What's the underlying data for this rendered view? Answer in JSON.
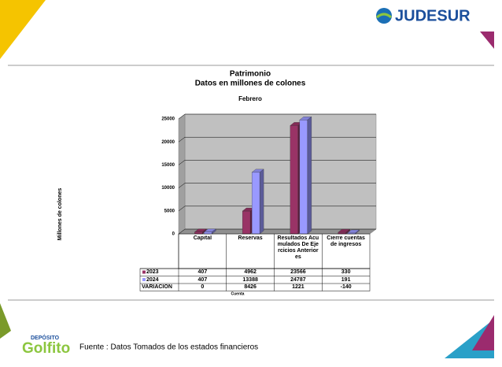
{
  "header": {
    "logo": "JUDESUR"
  },
  "chart_data": {
    "type": "bar3d",
    "title": "Patrimonio",
    "subtitle": "Datos en millones de colones",
    "period": "Febrero",
    "y_label": "Millones  de colones",
    "x_label": "Cuenta",
    "categories": [
      "Capital",
      "Reservas",
      "Resultados Acumulados De Ejercicios Anteriores",
      "Cierre cuentas de ingresos"
    ],
    "series": [
      {
        "name": "2023",
        "color": "#993366",
        "values": [
          407,
          4962,
          23566,
          330
        ]
      },
      {
        "name": "2024",
        "color": "#9999ff",
        "values": [
          407,
          13388,
          24787,
          191
        ]
      }
    ],
    "variation": {
      "name": "VARIACION",
      "values": [
        0,
        8426,
        1221,
        -140
      ]
    },
    "ylim": [
      0,
      25000
    ],
    "yticks": [
      0,
      5000,
      10000,
      15000,
      20000,
      25000
    ],
    "grid": true
  },
  "footer": {
    "source": "Fuente : Datos Tomados de los estados financieros",
    "logo_top": "DEPÓSITO",
    "logo": "Golfito"
  }
}
